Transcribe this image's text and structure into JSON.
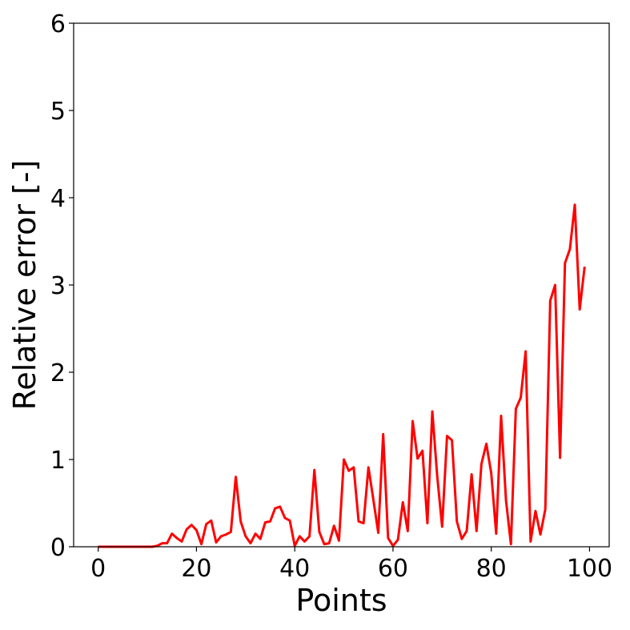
{
  "chart_data": {
    "type": "line",
    "xlabel": "Points",
    "ylabel": "Relative error [-]",
    "xlim": [
      -5,
      104
    ],
    "ylim": [
      0,
      6
    ],
    "xticks": [
      0,
      20,
      40,
      60,
      80,
      100
    ],
    "yticks": [
      0,
      1,
      2,
      3,
      4,
      5,
      6
    ],
    "grid": false,
    "series": [
      {
        "color": "#ff0000",
        "x": [
          0,
          1,
          2,
          3,
          4,
          5,
          6,
          7,
          8,
          9,
          10,
          11,
          12,
          13,
          14,
          15,
          16,
          17,
          18,
          19,
          20,
          21,
          22,
          23,
          24,
          25,
          26,
          27,
          28,
          29,
          30,
          31,
          32,
          33,
          34,
          35,
          36,
          37,
          38,
          39,
          40,
          41,
          42,
          43,
          44,
          45,
          46,
          47,
          48,
          49,
          50,
          51,
          52,
          53,
          54,
          55,
          56,
          57,
          58,
          59,
          60,
          61,
          62,
          63,
          64,
          65,
          66,
          67,
          68,
          69,
          70,
          71,
          72,
          73,
          74,
          75,
          76,
          77,
          78,
          79,
          80,
          81,
          82,
          83,
          84,
          85,
          86,
          87,
          88,
          89,
          90,
          91,
          92,
          93,
          94,
          95,
          96,
          97,
          98,
          99
        ],
        "values": [
          0,
          0,
          0,
          0,
          0,
          0,
          0,
          0,
          0,
          0,
          0,
          0,
          0.01,
          0.04,
          0.04,
          0.15,
          0.1,
          0.06,
          0.2,
          0.25,
          0.19,
          0.03,
          0.26,
          0.3,
          0.05,
          0.12,
          0.14,
          0.17,
          0.8,
          0.29,
          0.12,
          0.04,
          0.15,
          0.09,
          0.28,
          0.29,
          0.44,
          0.46,
          0.33,
          0.3,
          0.01,
          0.12,
          0.06,
          0.12,
          0.88,
          0.17,
          0.03,
          0.04,
          0.24,
          0.07,
          1.0,
          0.87,
          0.91,
          0.29,
          0.27,
          0.91,
          0.54,
          0.16,
          1.29,
          0.1,
          0.01,
          0.08,
          0.51,
          0.18,
          1.44,
          1.01,
          1.1,
          0.27,
          1.55,
          0.81,
          0.23,
          1.27,
          1.22,
          0.29,
          0.09,
          0.18,
          0.83,
          0.18,
          0.95,
          1.18,
          0.84,
          0.15,
          1.5,
          0.53,
          0.03,
          1.58,
          1.71,
          2.24,
          0.06,
          0.41,
          0.14,
          0.43,
          2.82,
          3.0,
          1.02,
          3.25,
          3.41,
          3.92,
          2.72,
          3.21
        ]
      }
    ]
  }
}
